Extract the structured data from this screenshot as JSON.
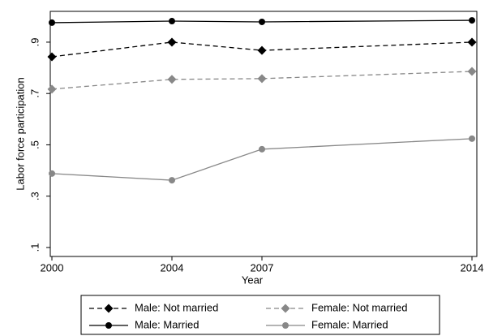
{
  "chart_data": {
    "type": "line",
    "x": [
      2000,
      2004,
      2007,
      2014
    ],
    "xlabel": "Year",
    "ylabel": "Labor force participation",
    "xlim": [
      2000,
      2014
    ],
    "xticks": [
      2000,
      2004,
      2007,
      2014
    ],
    "ylim": [
      0.065,
      1.02
    ],
    "yticks": [
      {
        "value": 0.1,
        "label": ".1"
      },
      {
        "value": 0.3,
        "label": ".3"
      },
      {
        "value": 0.5,
        "label": ".5"
      },
      {
        "value": 0.7,
        "label": ".7"
      },
      {
        "value": 0.9,
        "label": ".9"
      }
    ],
    "grid": false,
    "legend": "bottom",
    "series": [
      {
        "name": "Male: Not married",
        "color": "#000000",
        "dash": true,
        "marker": "diamond",
        "values": [
          0.843,
          0.9,
          0.868,
          0.9
        ]
      },
      {
        "name": "Female: Not married",
        "color": "#888888",
        "dash": true,
        "marker": "diamond",
        "values": [
          0.717,
          0.755,
          0.758,
          0.786
        ]
      },
      {
        "name": "Male: Married",
        "color": "#000000",
        "dash": false,
        "marker": "circle",
        "values": [
          0.976,
          0.982,
          0.979,
          0.985
        ]
      },
      {
        "name": "Female: Married",
        "color": "#888888",
        "dash": false,
        "marker": "circle",
        "values": [
          0.388,
          0.362,
          0.483,
          0.524
        ]
      }
    ]
  }
}
